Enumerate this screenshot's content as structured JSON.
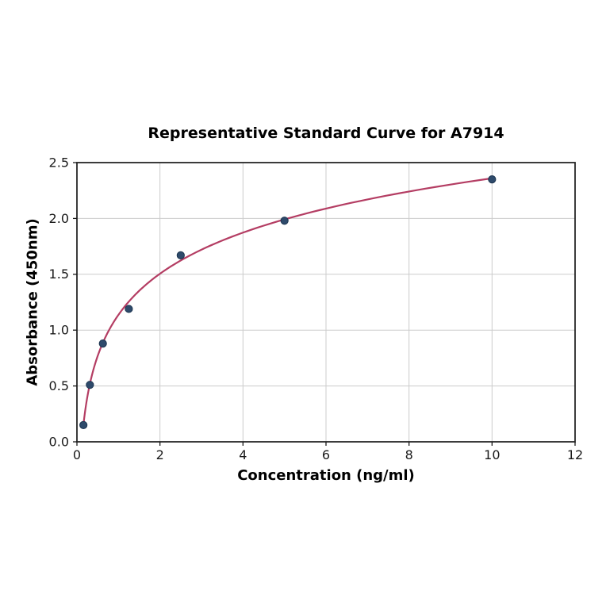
{
  "page": {
    "background": "#ffffff"
  },
  "chart_data": {
    "type": "scatter",
    "title": "Representative Standard Curve for A7914",
    "xlabel": "Concentration (ng/ml)",
    "ylabel": "Absorbance (450nm)",
    "xlim": [
      0,
      12
    ],
    "ylim": [
      0,
      2.5
    ],
    "grid": true,
    "legend": false,
    "x_tick_values": [
      0,
      2,
      4,
      6,
      8,
      10,
      12
    ],
    "x_tick_labels": [
      "0",
      "2",
      "4",
      "6",
      "8",
      "10",
      "12"
    ],
    "y_tick_values": [
      0,
      0.5,
      1.0,
      1.5,
      2.0,
      2.5
    ],
    "y_tick_labels": [
      "0.0",
      "0.5",
      "1.0",
      "1.5",
      "2.0",
      "2.5"
    ],
    "series": [
      {
        "name": "standards",
        "type": "scatter",
        "x": [
          0.156,
          0.3125,
          0.625,
          1.25,
          2.5,
          5,
          10
        ],
        "y": [
          0.15,
          0.51,
          0.88,
          1.19,
          1.67,
          1.98,
          2.35
        ]
      },
      {
        "name": "fit-curve",
        "type": "line",
        "model": "y = a + b*ln(x)",
        "a": 1.137,
        "b": 0.531,
        "x_start": 0.156,
        "x_end": 10
      }
    ],
    "colors": {
      "curve": "#b43d63",
      "marker": "#2e4a6b",
      "marker_edge": "#1d3550",
      "grid": "#cccccc",
      "spine": "#262626",
      "tick": "#1a1a1a",
      "text": "#000000"
    }
  }
}
